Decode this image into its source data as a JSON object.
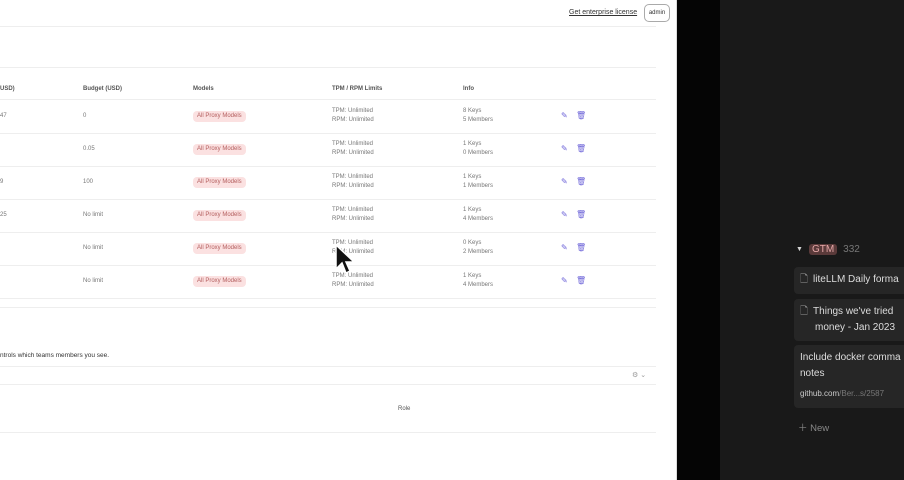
{
  "header": {
    "license_link": "Get enterprise license",
    "user_button": "admin"
  },
  "table": {
    "columns": [
      "USD)",
      "Budget (USD)",
      "Models",
      "TPM / RPM Limits",
      "Info"
    ],
    "rows": [
      {
        "spend": "47",
        "budget": "0",
        "models": "All Proxy Models",
        "tpm": "TPM: Unlimited",
        "rpm": "RPM: Unlimited",
        "keys": "8 Keys",
        "members": "5 Members"
      },
      {
        "spend": "",
        "budget": "0.05",
        "models": "All Proxy Models",
        "tpm": "TPM: Unlimited",
        "rpm": "RPM: Unlimited",
        "keys": "1 Keys",
        "members": "0 Members"
      },
      {
        "spend": "9",
        "budget": "100",
        "models": "All Proxy Models",
        "tpm": "TPM: Unlimited",
        "rpm": "RPM: Unlimited",
        "keys": "1 Keys",
        "members": "1 Members"
      },
      {
        "spend": "25",
        "budget": "No limit",
        "models": "All Proxy Models",
        "tpm": "TPM: Unlimited",
        "rpm": "RPM: Unlimited",
        "keys": "1 Keys",
        "members": "4 Members"
      },
      {
        "spend": "",
        "budget": "No limit",
        "models": "All Proxy Models",
        "tpm": "TPM: Unlimited",
        "rpm": "RPM: Unlimited",
        "keys": "0 Keys",
        "members": "2 Members"
      },
      {
        "spend": "",
        "budget": "No limit",
        "models": "All Proxy Models",
        "tpm": "TPM: Unlimited",
        "rpm": "RPM: Unlimited",
        "keys": "1 Keys",
        "members": "4 Members"
      }
    ]
  },
  "members": {
    "description": "ntrols which teams members you see.",
    "column_role": "Role"
  },
  "sidebar": {
    "group_tag": "GTM",
    "group_count": "332",
    "cards": [
      {
        "title": "liteLLM Daily forma"
      },
      {
        "title": "Things we've tried",
        "title2": "money - Jan 2023"
      },
      {
        "title": "Include docker comma",
        "title2": "notes",
        "link_domain": "github.com",
        "link_path": "/Ber...s/2587"
      }
    ],
    "new_label": "New"
  },
  "colors": {
    "accent": "#6c63d8",
    "pill_bg": "#fbe1e1",
    "pill_text": "#b35d5d",
    "dark_panel": "#191919"
  }
}
